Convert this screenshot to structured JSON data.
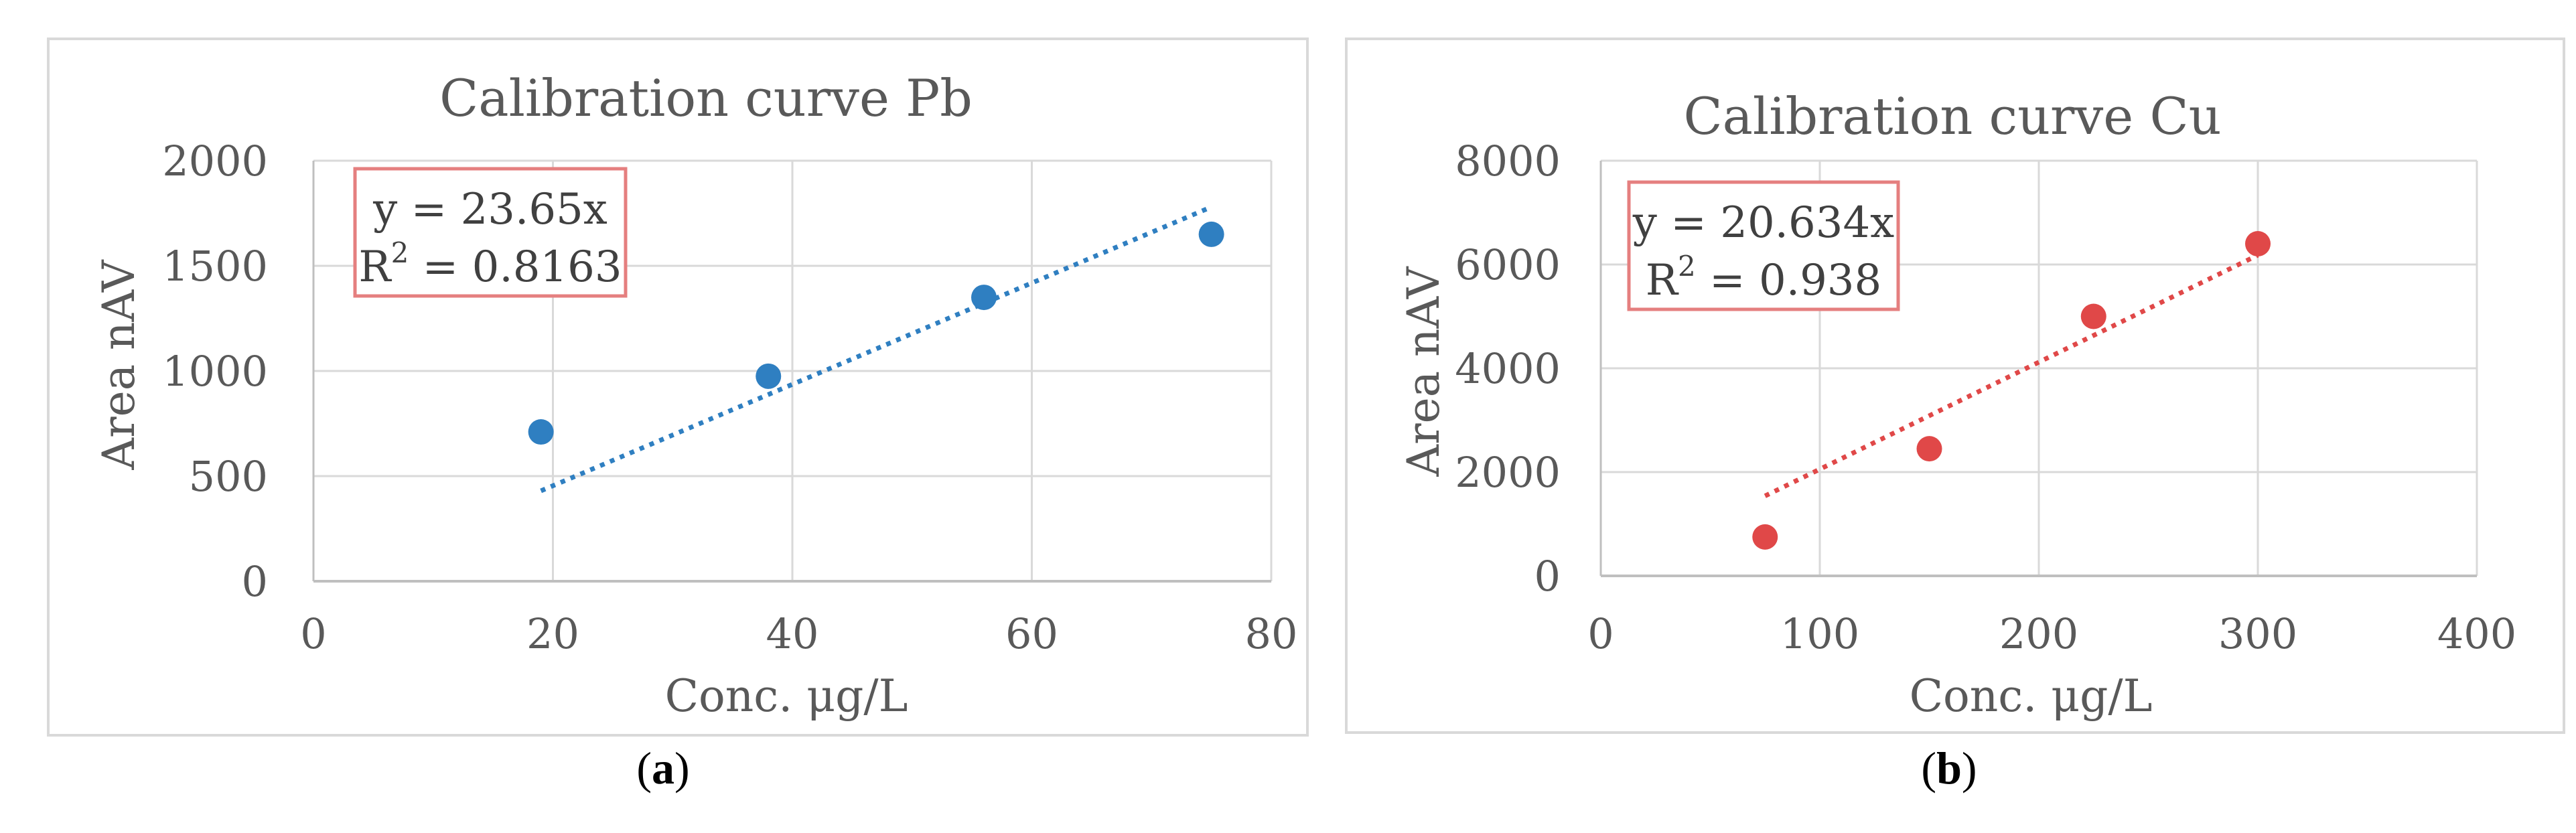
{
  "captions": {
    "a_open": "(",
    "a_letter": "a",
    "a_close": ")",
    "b_open": "(",
    "b_letter": "b",
    "b_close": ")"
  },
  "chart_data": [
    {
      "type": "scatter",
      "title": "Calibration curve Pb",
      "xlabel": "Conc. μg/L",
      "ylabel": "Area nAV",
      "xlim": [
        0,
        80
      ],
      "ylim": [
        0,
        2000
      ],
      "xticks": [
        0,
        20,
        40,
        60,
        80
      ],
      "yticks": [
        0,
        500,
        1000,
        1500,
        2000
      ],
      "grid": true,
      "marker_color": "#2F7FC1",
      "border_color": "#D9D9D9",
      "annotation_border_color": "#E57F7F",
      "series": [
        {
          "x": [
            19,
            38,
            56,
            75
          ],
          "y": [
            710,
            975,
            1350,
            1650
          ]
        }
      ],
      "trendline": {
        "style": "dotted",
        "x": [
          19,
          75
        ],
        "y": [
          430,
          1780
        ]
      },
      "equation": "y = 23.65x",
      "r2_prefix": "R",
      "r2_sup": "2",
      "r2_suffix": " = 0.8163"
    },
    {
      "type": "scatter",
      "title": "Calibration curve Cu",
      "xlabel": "Conc. μg/L",
      "ylabel": "Area nAV",
      "xlim": [
        0,
        400
      ],
      "ylim": [
        0,
        8000
      ],
      "xticks": [
        0,
        100,
        200,
        300,
        400
      ],
      "yticks": [
        0,
        2000,
        4000,
        6000,
        8000
      ],
      "grid": true,
      "marker_color": "#E04848",
      "border_color": "#D9D9D9",
      "annotation_border_color": "#E57F7F",
      "series": [
        {
          "x": [
            75,
            150,
            225,
            300
          ],
          "y": [
            750,
            2450,
            5000,
            6400
          ]
        }
      ],
      "trendline": {
        "style": "dotted",
        "x": [
          75,
          300
        ],
        "y": [
          1540,
          6180
        ]
      },
      "equation": "y = 20.634x",
      "r2_prefix": "R",
      "r2_sup": "2",
      "r2_suffix": " = 0.938"
    }
  ]
}
